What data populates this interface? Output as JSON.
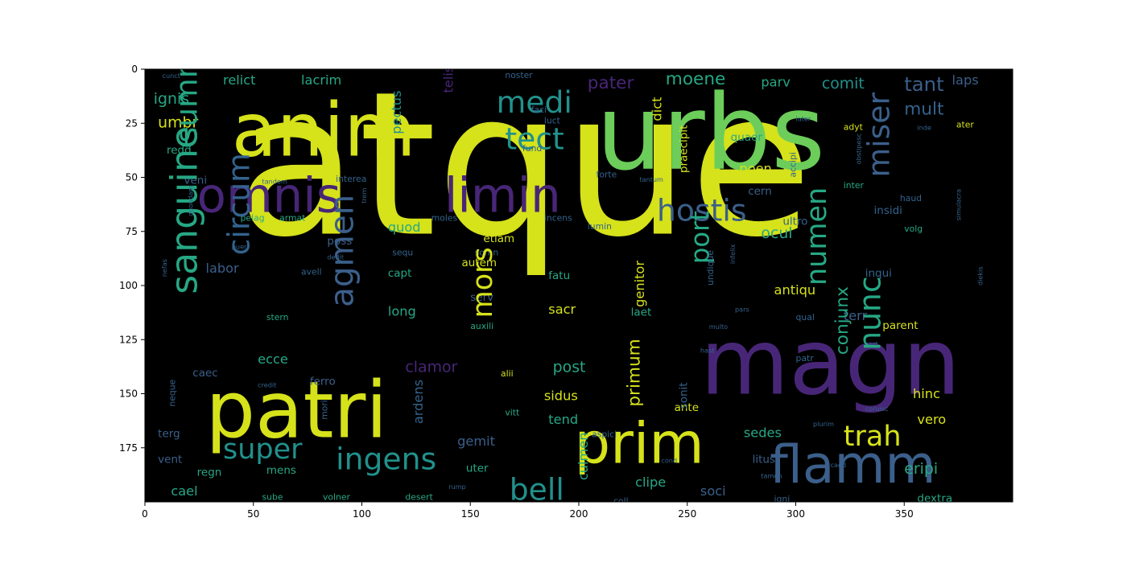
{
  "chart_data": {
    "type": "wordcloud",
    "title": "",
    "xlabel": "",
    "ylabel": "",
    "xlim": [
      0,
      400
    ],
    "ylim": [
      200,
      0
    ],
    "xticks": [
      0,
      50,
      100,
      150,
      200,
      250,
      300,
      350
    ],
    "yticks": [
      0,
      25,
      50,
      75,
      100,
      125,
      150,
      175
    ],
    "background": "#000000",
    "colors": {
      "yellow": "#d6e21a",
      "green": "#6ccd5a",
      "teal": "#26a884",
      "blue": "#3b5f8a",
      "purple": "#482677",
      "slate": "#33638d",
      "cyan": "#21918c",
      "lime": "#b5de2b"
    },
    "words": [
      {
        "text": "atque",
        "x": 42,
        "y": 76,
        "size": 92,
        "color": "yellow"
      },
      {
        "text": "urbs",
        "x": 208,
        "y": 46,
        "size": 48,
        "color": "green"
      },
      {
        "text": "anim",
        "x": 40,
        "y": 40,
        "size": 34,
        "color": "yellow"
      },
      {
        "text": "patri",
        "x": 28,
        "y": 170,
        "size": 36,
        "color": "yellow"
      },
      {
        "text": "magn",
        "x": 256,
        "y": 150,
        "size": 42,
        "color": "purple"
      },
      {
        "text": "omnis",
        "x": 24,
        "y": 66,
        "size": 22,
        "color": "purple"
      },
      {
        "text": "limin",
        "x": 138,
        "y": 66,
        "size": 22,
        "color": "purple"
      },
      {
        "text": "prim",
        "x": 198,
        "y": 182,
        "size": 26,
        "color": "yellow"
      },
      {
        "text": "flamm",
        "x": 288,
        "y": 191,
        "size": 24,
        "color": "blue"
      },
      {
        "text": "medi",
        "x": 162,
        "y": 20,
        "size": 14,
        "color": "cyan"
      },
      {
        "text": "tect",
        "x": 166,
        "y": 37,
        "size": 14,
        "color": "cyan"
      },
      {
        "text": "hostis",
        "x": 236,
        "y": 70,
        "size": 14,
        "color": "blue"
      },
      {
        "text": "ingens",
        "x": 88,
        "y": 185,
        "size": 14,
        "color": "cyan"
      },
      {
        "text": "super",
        "x": 36,
        "y": 180,
        "size": 13,
        "color": "cyan"
      },
      {
        "text": "bell",
        "x": 168,
        "y": 199,
        "size": 14,
        "color": "cyan"
      },
      {
        "text": "trah",
        "x": 322,
        "y": 174,
        "size": 13,
        "color": "yellow"
      },
      {
        "text": "tant",
        "x": 350,
        "y": 10,
        "size": 9,
        "color": "blue"
      },
      {
        "text": "mult",
        "x": 350,
        "y": 21,
        "size": 8,
        "color": "slate"
      },
      {
        "text": "comit",
        "x": 312,
        "y": 9,
        "size": 7,
        "color": "cyan"
      },
      {
        "text": "moene",
        "x": 240,
        "y": 7,
        "size": 8,
        "color": "teal"
      },
      {
        "text": "pater",
        "x": 204,
        "y": 9,
        "size": 8,
        "color": "purple"
      },
      {
        "text": "parv",
        "x": 284,
        "y": 8,
        "size": 6,
        "color": "teal"
      },
      {
        "text": "laps",
        "x": 372,
        "y": 7,
        "size": 6,
        "color": "blue"
      },
      {
        "text": "relict",
        "x": 36,
        "y": 7,
        "size": 6,
        "color": "teal"
      },
      {
        "text": "lacrim",
        "x": 72,
        "y": 7,
        "size": 6,
        "color": "teal"
      },
      {
        "text": "ignis",
        "x": 4,
        "y": 16,
        "size": 7,
        "color": "teal"
      },
      {
        "text": "umbr",
        "x": 6,
        "y": 27,
        "size": 7,
        "color": "yellow"
      },
      {
        "text": "veni",
        "x": 18,
        "y": 53,
        "size": 5,
        "color": "blue"
      },
      {
        "text": "redd",
        "x": 10,
        "y": 39,
        "size": 5,
        "color": "teal"
      },
      {
        "text": "quod",
        "x": 112,
        "y": 75,
        "size": 6,
        "color": "teal"
      },
      {
        "text": "cern",
        "x": 278,
        "y": 58,
        "size": 5,
        "color": "blue"
      },
      {
        "text": "poen",
        "x": 274,
        "y": 48,
        "size": 6,
        "color": "yellow"
      },
      {
        "text": "quaer",
        "x": 270,
        "y": 33,
        "size": 5,
        "color": "teal"
      },
      {
        "text": "ocul",
        "x": 284,
        "y": 78,
        "size": 7,
        "color": "teal"
      },
      {
        "text": "poss",
        "x": 84,
        "y": 81,
        "size": 5,
        "color": "blue"
      },
      {
        "text": "etiam",
        "x": 156,
        "y": 80,
        "size": 5,
        "color": "yellow"
      },
      {
        "text": "labor",
        "x": 28,
        "y": 94,
        "size": 6,
        "color": "blue"
      },
      {
        "text": "capt",
        "x": 112,
        "y": 96,
        "size": 5,
        "color": "teal"
      },
      {
        "text": "autem",
        "x": 146,
        "y": 91,
        "size": 5,
        "color": "yellow"
      },
      {
        "text": "fatu",
        "x": 186,
        "y": 97,
        "size": 5,
        "color": "teal"
      },
      {
        "text": "sacr",
        "x": 186,
        "y": 113,
        "size": 6,
        "color": "yellow"
      },
      {
        "text": "long",
        "x": 112,
        "y": 114,
        "size": 6,
        "color": "teal"
      },
      {
        "text": "serv",
        "x": 150,
        "y": 107,
        "size": 5,
        "color": "blue"
      },
      {
        "text": "laet",
        "x": 224,
        "y": 114,
        "size": 5,
        "color": "teal"
      },
      {
        "text": "antiqu",
        "x": 290,
        "y": 104,
        "size": 6,
        "color": "yellow"
      },
      {
        "text": "terr",
        "x": 322,
        "y": 116,
        "size": 6,
        "color": "blue"
      },
      {
        "text": "ecce",
        "x": 52,
        "y": 136,
        "size": 6,
        "color": "teal"
      },
      {
        "text": "caec",
        "x": 22,
        "y": 142,
        "size": 5,
        "color": "blue"
      },
      {
        "text": "ferro",
        "x": 76,
        "y": 146,
        "size": 5,
        "color": "blue"
      },
      {
        "text": "clamor",
        "x": 120,
        "y": 140,
        "size": 7,
        "color": "purple"
      },
      {
        "text": "post",
        "x": 188,
        "y": 140,
        "size": 7,
        "color": "teal"
      },
      {
        "text": "sidus",
        "x": 184,
        "y": 153,
        "size": 6,
        "color": "yellow"
      },
      {
        "text": "tend",
        "x": 186,
        "y": 164,
        "size": 6,
        "color": "teal"
      },
      {
        "text": "gemit",
        "x": 144,
        "y": 174,
        "size": 6,
        "color": "blue"
      },
      {
        "text": "uter",
        "x": 148,
        "y": 186,
        "size": 5,
        "color": "teal"
      },
      {
        "text": "sedes",
        "x": 276,
        "y": 170,
        "size": 6,
        "color": "teal"
      },
      {
        "text": "litus",
        "x": 280,
        "y": 182,
        "size": 5,
        "color": "blue"
      },
      {
        "text": "hinc",
        "x": 354,
        "y": 152,
        "size": 6,
        "color": "yellow"
      },
      {
        "text": "vero",
        "x": 356,
        "y": 164,
        "size": 6,
        "color": "yellow"
      },
      {
        "text": "eripi",
        "x": 350,
        "y": 187,
        "size": 7,
        "color": "teal"
      },
      {
        "text": "dextra",
        "x": 356,
        "y": 200,
        "size": 5,
        "color": "teal"
      },
      {
        "text": "clipe",
        "x": 226,
        "y": 193,
        "size": 6,
        "color": "teal"
      },
      {
        "text": "soci",
        "x": 256,
        "y": 197,
        "size": 6,
        "color": "blue"
      },
      {
        "text": "coll",
        "x": 216,
        "y": 201,
        "size": 4,
        "color": "slate"
      },
      {
        "text": "cael",
        "x": 12,
        "y": 197,
        "size": 6,
        "color": "teal"
      },
      {
        "text": "regn",
        "x": 24,
        "y": 188,
        "size": 5,
        "color": "teal"
      },
      {
        "text": "mens",
        "x": 56,
        "y": 187,
        "size": 5,
        "color": "teal"
      },
      {
        "text": "vent",
        "x": 6,
        "y": 182,
        "size": 5,
        "color": "blue"
      },
      {
        "text": "terg",
        "x": 6,
        "y": 170,
        "size": 5,
        "color": "blue"
      },
      {
        "text": "sube",
        "x": 54,
        "y": 199,
        "size": 4,
        "color": "teal"
      },
      {
        "text": "volner",
        "x": 82,
        "y": 199,
        "size": 4,
        "color": "teal"
      },
      {
        "text": "desert",
        "x": 120,
        "y": 199,
        "size": 4,
        "color": "teal"
      },
      {
        "text": "pelag",
        "x": 44,
        "y": 70,
        "size": 4,
        "color": "teal"
      },
      {
        "text": "armat",
        "x": 62,
        "y": 70,
        "size": 4,
        "color": "teal"
      },
      {
        "text": "moles",
        "x": 132,
        "y": 70,
        "size": 4,
        "color": "slate"
      },
      {
        "text": "incens",
        "x": 184,
        "y": 70,
        "size": 4,
        "color": "slate"
      },
      {
        "text": "lumin",
        "x": 204,
        "y": 74,
        "size": 4,
        "color": "slate"
      },
      {
        "text": "inter",
        "x": 322,
        "y": 55,
        "size": 4,
        "color": "teal"
      },
      {
        "text": "insidi",
        "x": 336,
        "y": 67,
        "size": 5,
        "color": "slate"
      },
      {
        "text": "ultro",
        "x": 294,
        "y": 72,
        "size": 5,
        "color": "slate"
      },
      {
        "text": "inqui",
        "x": 332,
        "y": 96,
        "size": 5,
        "color": "slate"
      },
      {
        "text": "parent",
        "x": 340,
        "y": 120,
        "size": 5,
        "color": "yellow"
      },
      {
        "text": "patr",
        "x": 300,
        "y": 135,
        "size": 4,
        "color": "slate"
      },
      {
        "text": "stern",
        "x": 56,
        "y": 116,
        "size": 4,
        "color": "teal"
      },
      {
        "text": "alii",
        "x": 164,
        "y": 142,
        "size": 4,
        "color": "yellow"
      },
      {
        "text": "vitt",
        "x": 166,
        "y": 160,
        "size": 4,
        "color": "teal"
      },
      {
        "text": "ante",
        "x": 244,
        "y": 158,
        "size": 5,
        "color": "yellow"
      },
      {
        "text": "auxili",
        "x": 150,
        "y": 120,
        "size": 4,
        "color": "teal"
      },
      {
        "text": "noster",
        "x": 166,
        "y": 4,
        "size": 4,
        "color": "slate"
      },
      {
        "text": "cunct",
        "x": 8,
        "y": 4,
        "size": 3,
        "color": "slate"
      },
      {
        "text": "later",
        "x": 300,
        "y": 24,
        "size": 3,
        "color": "slate"
      },
      {
        "text": "adyt",
        "x": 322,
        "y": 28,
        "size": 4,
        "color": "yellow"
      },
      {
        "text": "luct",
        "x": 184,
        "y": 25,
        "size": 4,
        "color": "slate"
      },
      {
        "text": "faci",
        "x": 178,
        "y": 20,
        "size": 4,
        "color": "slate"
      },
      {
        "text": "fund",
        "x": 174,
        "y": 38,
        "size": 4,
        "color": "slate"
      },
      {
        "text": "interea",
        "x": 88,
        "y": 52,
        "size": 4,
        "color": "slate"
      },
      {
        "text": "tandem",
        "x": 54,
        "y": 53,
        "size": 3,
        "color": "slate"
      },
      {
        "text": "forte",
        "x": 208,
        "y": 50,
        "size": 4,
        "color": "slate"
      },
      {
        "text": "tantum",
        "x": 228,
        "y": 52,
        "size": 3,
        "color": "slate"
      },
      {
        "text": "haud",
        "x": 348,
        "y": 61,
        "size": 4,
        "color": "slate"
      },
      {
        "text": "ater",
        "x": 374,
        "y": 27,
        "size": 4,
        "color": "yellow"
      },
      {
        "text": "inde",
        "x": 356,
        "y": 28,
        "size": 3,
        "color": "slate"
      },
      {
        "text": "volg",
        "x": 350,
        "y": 75,
        "size": 4,
        "color": "teal"
      },
      {
        "text": "sequ",
        "x": 114,
        "y": 86,
        "size": 4,
        "color": "slate"
      },
      {
        "text": "somn",
        "x": 152,
        "y": 86,
        "size": 4,
        "color": "slate"
      },
      {
        "text": "puer",
        "x": 40,
        "y": 83,
        "size": 3,
        "color": "slate"
      },
      {
        "text": "dedit",
        "x": 84,
        "y": 88,
        "size": 3,
        "color": "slate"
      },
      {
        "text": "avell",
        "x": 72,
        "y": 95,
        "size": 4,
        "color": "slate"
      },
      {
        "text": "credit",
        "x": 52,
        "y": 147,
        "size": 3,
        "color": "slate"
      },
      {
        "text": "pars",
        "x": 272,
        "y": 112,
        "size": 3,
        "color": "slate"
      },
      {
        "text": "qual",
        "x": 300,
        "y": 116,
        "size": 4,
        "color": "slate"
      },
      {
        "text": "multo",
        "x": 260,
        "y": 120,
        "size": 3,
        "color": "slate"
      },
      {
        "text": "hast",
        "x": 256,
        "y": 131,
        "size": 3,
        "color": "slate"
      },
      {
        "text": "cert",
        "x": 332,
        "y": 128,
        "size": 3,
        "color": "slate"
      },
      {
        "text": "plurim",
        "x": 308,
        "y": 165,
        "size": 3,
        "color": "slate"
      },
      {
        "text": "coruisc",
        "x": 332,
        "y": 158,
        "size": 3,
        "color": "slate"
      },
      {
        "text": "caed",
        "x": 316,
        "y": 184,
        "size": 3,
        "color": "slate"
      },
      {
        "text": "tamen",
        "x": 284,
        "y": 189,
        "size": 3,
        "color": "slate"
      },
      {
        "text": "igni",
        "x": 290,
        "y": 200,
        "size": 4,
        "color": "slate"
      },
      {
        "text": "cond",
        "x": 238,
        "y": 182,
        "size": 3,
        "color": "slate"
      },
      {
        "text": "rump",
        "x": 140,
        "y": 194,
        "size": 3,
        "color": "slate"
      },
      {
        "text": "aspici",
        "x": 206,
        "y": 170,
        "size": 4,
        "color": "slate"
      }
    ],
    "vertical_words": [
      {
        "text": "summ",
        "x": 24,
        "y": 34,
        "size": 14,
        "color": "teal"
      },
      {
        "text": "sanguine",
        "x": 24,
        "y": 104,
        "size": 17,
        "color": "teal"
      },
      {
        "text": "circum",
        "x": 48,
        "y": 86,
        "size": 14,
        "color": "slate"
      },
      {
        "text": "agmen",
        "x": 96,
        "y": 110,
        "size": 15,
        "color": "blue"
      },
      {
        "text": "mors",
        "x": 160,
        "y": 115,
        "size": 13,
        "color": "yellow"
      },
      {
        "text": "port",
        "x": 260,
        "y": 90,
        "size": 12,
        "color": "teal"
      },
      {
        "text": "numen",
        "x": 314,
        "y": 100,
        "size": 13,
        "color": "teal"
      },
      {
        "text": "nunc",
        "x": 339,
        "y": 130,
        "size": 14,
        "color": "teal"
      },
      {
        "text": "miser",
        "x": 343,
        "y": 50,
        "size": 14,
        "color": "blue"
      },
      {
        "text": "conjunx",
        "x": 324,
        "y": 132,
        "size": 8,
        "color": "teal"
      },
      {
        "text": "genitor",
        "x": 230,
        "y": 110,
        "size": 6,
        "color": "yellow"
      },
      {
        "text": "primum",
        "x": 228,
        "y": 156,
        "size": 8,
        "color": "yellow"
      },
      {
        "text": "culmen",
        "x": 204,
        "y": 190,
        "size": 6,
        "color": "teal"
      },
      {
        "text": "ardens",
        "x": 128,
        "y": 164,
        "size": 6,
        "color": "slate"
      },
      {
        "text": "dict",
        "x": 238,
        "y": 24,
        "size": 6,
        "color": "yellow"
      },
      {
        "text": "pectus",
        "x": 118,
        "y": 30,
        "size": 6,
        "color": "cyan"
      },
      {
        "text": "telis",
        "x": 142,
        "y": 11,
        "size": 6,
        "color": "purple"
      },
      {
        "text": "praecipit",
        "x": 250,
        "y": 48,
        "size": 5,
        "color": "yellow"
      },
      {
        "text": "sonit",
        "x": 250,
        "y": 157,
        "size": 5,
        "color": "slate"
      },
      {
        "text": "accipi",
        "x": 300,
        "y": 50,
        "size": 4,
        "color": "slate"
      },
      {
        "text": "simulacra",
        "x": 376,
        "y": 70,
        "size": 3,
        "color": "slate"
      },
      {
        "text": "diekis",
        "x": 386,
        "y": 100,
        "size": 3,
        "color": "slate"
      },
      {
        "text": "undique",
        "x": 262,
        "y": 100,
        "size": 4,
        "color": "slate"
      },
      {
        "text": "infelix",
        "x": 272,
        "y": 90,
        "size": 3,
        "color": "slate"
      },
      {
        "text": "mori",
        "x": 84,
        "y": 162,
        "size": 4,
        "color": "slate"
      },
      {
        "text": "neque",
        "x": 14,
        "y": 156,
        "size": 4,
        "color": "slate"
      },
      {
        "text": "quondam",
        "x": 22,
        "y": 68,
        "size": 3,
        "color": "slate"
      },
      {
        "text": "nefas",
        "x": 10,
        "y": 96,
        "size": 3,
        "color": "slate"
      },
      {
        "text": "trem",
        "x": 102,
        "y": 62,
        "size": 3,
        "color": "slate"
      },
      {
        "text": "obstipesc",
        "x": 330,
        "y": 44,
        "size": 3,
        "color": "slate"
      }
    ]
  }
}
